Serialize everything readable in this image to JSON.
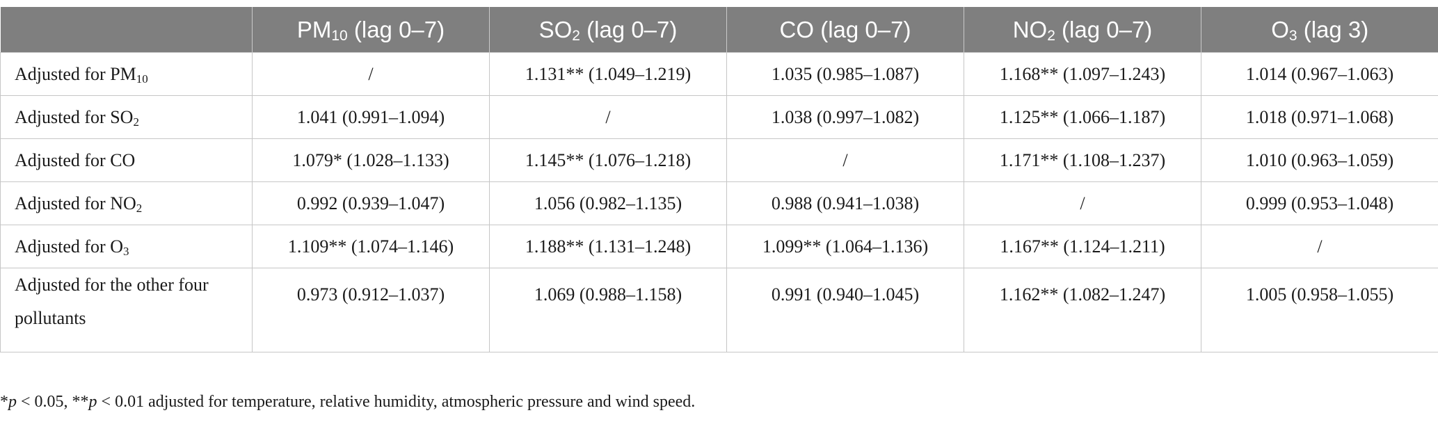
{
  "table": {
    "header": [
      {
        "label": "",
        "sub": "",
        "suffix": ""
      },
      {
        "label": "PM",
        "sub": "10",
        "suffix": " (lag 0–7)"
      },
      {
        "label": "SO",
        "sub": "2",
        "suffix": " (lag 0–7)"
      },
      {
        "label": "CO",
        "sub": "",
        "suffix": " (lag 0–7)"
      },
      {
        "label": "NO",
        "sub": "2",
        "suffix": " (lag 0–7)"
      },
      {
        "label": "O",
        "sub": "3",
        "suffix": " (lag 3)"
      }
    ],
    "rows": [
      {
        "label": {
          "text": "Adjusted for PM",
          "sub": "10"
        },
        "cells": [
          "/",
          "1.131** (1.049–1.219)",
          "1.035 (0.985–1.087)",
          "1.168** (1.097–1.243)",
          "1.014 (0.967–1.063)"
        ]
      },
      {
        "label": {
          "text": "Adjusted for SO",
          "sub": "2"
        },
        "cells": [
          "1.041 (0.991–1.094)",
          "/",
          "1.038 (0.997–1.082)",
          "1.125** (1.066–1.187)",
          "1.018 (0.971–1.068)"
        ]
      },
      {
        "label": {
          "text": "Adjusted for CO",
          "sub": ""
        },
        "cells": [
          "1.079* (1.028–1.133)",
          "1.145** (1.076–1.218)",
          "/",
          "1.171** (1.108–1.237)",
          "1.010 (0.963–1.059)"
        ]
      },
      {
        "label": {
          "text": "Adjusted for NO",
          "sub": "2"
        },
        "cells": [
          "0.992 (0.939–1.047)",
          "1.056 (0.982–1.135)",
          "0.988 (0.941–1.038)",
          "/",
          "0.999 (0.953–1.048)"
        ]
      },
      {
        "label": {
          "text": "Adjusted for O",
          "sub": "3"
        },
        "cells": [
          "1.109** (1.074–1.146)",
          "1.188** (1.131–1.248)",
          "1.099** (1.064–1.136)",
          "1.167** (1.124–1.211)",
          "/"
        ]
      },
      {
        "label": {
          "text": "Adjusted for the other four pollutants",
          "sub": ""
        },
        "cells": [
          "0.973 (0.912–1.037)",
          "1.069 (0.988–1.158)",
          "0.991 (0.940–1.045)",
          "1.162** (1.082–1.247)",
          "1.005 (0.958–1.055)"
        ]
      }
    ]
  },
  "footnote": {
    "star1": "*",
    "p1": "p",
    "t1": " < 0.05, **",
    "p2": "p",
    "t2": " < 0.01 adjusted for temperature, relative humidity, atmospheric pressure and wind speed."
  }
}
